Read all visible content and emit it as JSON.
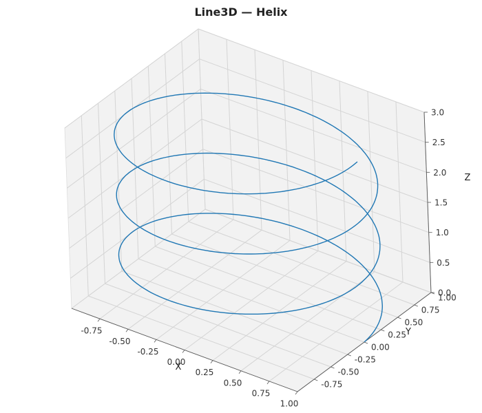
{
  "chart_data": {
    "type": "line3d",
    "title": "Line3D — Helix",
    "xlabel": "X",
    "ylabel": "Y",
    "zlabel": "Z",
    "xlim": [
      -1.0,
      1.0
    ],
    "ylim": [
      -1.0,
      1.0
    ],
    "zlim": [
      0.0,
      3.0
    ],
    "xticks": [
      "-0.75",
      "-0.50",
      "-0.25",
      "0.00",
      "0.25",
      "0.50",
      "0.75",
      "1.00"
    ],
    "yticks": [
      "-0.75",
      "-0.50",
      "-0.25",
      "0.00",
      "0.25",
      "0.50",
      "0.75",
      "1.00"
    ],
    "zticks": [
      "0.0",
      "0.5",
      "1.0",
      "1.5",
      "2.0",
      "2.5",
      "3.0"
    ],
    "grid": true,
    "series": [
      {
        "parametric": {
          "x": "cos(t)",
          "y": "sin(t)",
          "z": "t / (2*pi)",
          "t_range": [
            0,
            18.85
          ]
        },
        "color": "#1f77b4"
      }
    ],
    "pane_color": "#f2f2f2",
    "grid_color": "#d4d4d4"
  }
}
